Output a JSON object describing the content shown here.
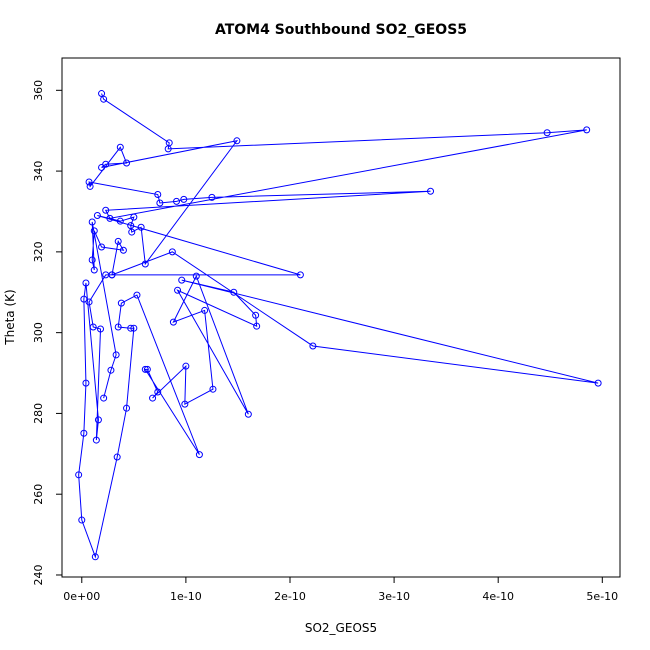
{
  "chart_data": {
    "type": "line",
    "title": "ATOM4 Southbound SO2_GEOS5",
    "x_label": "SO2_GEOS5",
    "y_label": "Theta (K)",
    "xlim": [
      -1.9e-11,
      5.17e-10
    ],
    "ylim": [
      239.5,
      368
    ],
    "xticks": [
      {
        "value": 0,
        "label": "0e+00"
      },
      {
        "value": 1e-10,
        "label": "1e-10"
      },
      {
        "value": 2e-10,
        "label": "2e-10"
      },
      {
        "value": 3e-10,
        "label": "3e-10"
      },
      {
        "value": 4e-10,
        "label": "4e-10"
      },
      {
        "value": 5e-10,
        "label": "5e-10"
      }
    ],
    "yticks": [
      240,
      260,
      280,
      300,
      320,
      340,
      360
    ],
    "series": [
      {
        "name": "SO2_GEOS5",
        "color": "#0000ff",
        "x": [
          1.9e-11,
          2.1e-11,
          8.4e-11,
          8.3e-11,
          4.47e-10,
          4.85e-10,
          2.7e-11,
          2.3e-11,
          3.35e-10,
          1.25e-10,
          9.8e-11,
          9.1e-11,
          7.5e-11,
          7.3e-11,
          7e-12,
          8e-12,
          3.7e-11,
          4.3e-11,
          2.3e-11,
          1.9e-11,
          1.49e-10,
          6.1e-11,
          5.7e-11,
          4.8e-11,
          4.7e-11,
          5e-11,
          3.7e-11,
          1.5e-11,
          2.1e-10,
          2.9e-11,
          8.7e-11,
          2.22e-10,
          4.96e-10,
          9.6e-11,
          1.46e-10,
          1.67e-10,
          1.68e-10,
          9.2e-11,
          1.6e-10,
          1.1e-10,
          8.8e-11,
          1.18e-10,
          1.26e-10,
          9.9e-11,
          1e-10,
          6.8e-11,
          7.3e-11,
          6.3e-11,
          6.1e-11,
          1.13e-10,
          5.3e-11,
          3.8e-11,
          3.5e-11,
          4.7e-11,
          5e-11,
          4.3e-11,
          3.4e-11,
          1.3e-11,
          0.0,
          -3e-12,
          2e-12,
          4e-12,
          2e-12,
          4e-12,
          1.6e-11,
          1.4e-11,
          1.8e-11,
          1.1e-11,
          7e-12,
          2.3e-11,
          2.9e-11,
          3.5e-11,
          4e-11,
          1.9e-11,
          1.2e-11,
          1e-11,
          1.2e-11,
          1e-11,
          3.3e-11,
          2.8e-11,
          2.1e-11
        ],
        "values": [
          359.2,
          357.8,
          347,
          345.5,
          349.5,
          350.2,
          328.3,
          330.3,
          335,
          333.5,
          333,
          332.5,
          332.1,
          334.2,
          337.3,
          336.2,
          345.9,
          342,
          341.7,
          340.9,
          347.5,
          317,
          326.1,
          324.9,
          326.5,
          328.6,
          327.6,
          329,
          314.3,
          314.3,
          320,
          296.7,
          287.5,
          313,
          310,
          304.3,
          301.6,
          310.5,
          279.8,
          314,
          302.6,
          305.5,
          286,
          282.3,
          291.7,
          283.8,
          285.3,
          290.9,
          290.9,
          269.8,
          309.3,
          307.3,
          301.4,
          301.1,
          301.1,
          281.3,
          269.2,
          244.5,
          253.6,
          264.8,
          275.1,
          287.5,
          308.3,
          312.3,
          278.4,
          273.4,
          300.9,
          301.4,
          307.6,
          314.3,
          314.3,
          322.6,
          320.4,
          321.2,
          325.2,
          318,
          315.5,
          327.4,
          294.5,
          290.7,
          283.8
        ]
      }
    ]
  }
}
